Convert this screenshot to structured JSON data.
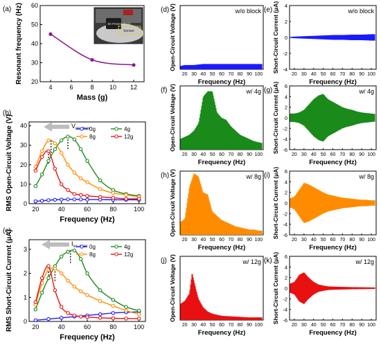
{
  "chart_data": [
    {
      "id": "a",
      "panel_label": "(a)",
      "type": "line",
      "xlabel": "Mass (g)",
      "ylabel": "Resonant frequency (Hz)",
      "xlim": [
        3,
        13
      ],
      "ylim": [
        20,
        60
      ],
      "xticks": [
        "4",
        "6",
        "8",
        "10",
        "12"
      ],
      "yticks": [
        "20",
        "30",
        "40",
        "50",
        "60"
      ],
      "series": [
        {
          "x": [
            4,
            8,
            12
          ],
          "values": [
            45,
            31.5,
            28.8
          ],
          "color": "#8B1A8F"
        }
      ],
      "inset_texts": [
        "3D Printed Block",
        "Sensor"
      ]
    },
    {
      "id": "b",
      "panel_label": "(b)",
      "type": "line",
      "xlabel": "Frequency (Hz)",
      "ylabel": "RMS Open-Circuit Voltage (V)",
      "xlim": [
        15,
        105
      ],
      "ylim": [
        0,
        42
      ],
      "xticks": [
        "20",
        "40",
        "60",
        "80",
        "100"
      ],
      "yticks": [
        "0",
        "10",
        "20",
        "30",
        "40"
      ],
      "annotation": "V",
      "annotation_sub": "oc, max",
      "series": [
        {
          "name": "0g",
          "color": "#1a1aff",
          "x": [
            20,
            25,
            30,
            35,
            40,
            45,
            50,
            55,
            60,
            70,
            80,
            90,
            100
          ],
          "values": [
            1.2,
            1.5,
            1.8,
            2.0,
            2.1,
            2.2,
            2.2,
            2.2,
            2.1,
            2.1,
            2.0,
            2.0,
            2.0
          ]
        },
        {
          "name": "4g",
          "color": "#1a8a1a",
          "x": [
            20,
            25,
            30,
            35,
            40,
            45,
            50,
            55,
            60,
            70,
            80,
            90,
            100
          ],
          "values": [
            9,
            15,
            22,
            28,
            32.5,
            34.5,
            33,
            28,
            22,
            12,
            7,
            5,
            4
          ]
        },
        {
          "name": "8g",
          "color": "#ff8c00",
          "x": [
            20,
            25,
            30,
            35,
            40,
            45,
            50,
            55,
            60,
            70,
            80,
            90,
            100
          ],
          "values": [
            19,
            27,
            32.5,
            31,
            26,
            20,
            16,
            13,
            11,
            7.5,
            5.5,
            4.5,
            3.5
          ]
        },
        {
          "name": "12g",
          "color": "#e81010",
          "x": [
            20,
            25,
            30,
            35,
            40,
            45,
            50,
            55,
            60,
            70,
            80,
            90,
            100
          ],
          "values": [
            17,
            24,
            27,
            18,
            10,
            7,
            5,
            4.5,
            4,
            3.5,
            3,
            2.5,
            2.5
          ]
        }
      ]
    },
    {
      "id": "c",
      "panel_label": "(c)",
      "type": "line",
      "xlabel": "Frequency (Hz)",
      "ylabel": "RMS Short-Circuit Current (μA)",
      "xlim": [
        15,
        105
      ],
      "ylim": [
        0,
        3.4
      ],
      "xticks": [
        "20",
        "40",
        "60",
        "80",
        "100"
      ],
      "yticks": [
        "0",
        "1",
        "2",
        "3"
      ],
      "annotation": "I",
      "annotation_sub": "sc, max",
      "series": [
        {
          "name": "0g",
          "color": "#1a1aff",
          "x": [
            20,
            30,
            40,
            50,
            60,
            70,
            80,
            90,
            100
          ],
          "values": [
            0.05,
            0.1,
            0.15,
            0.2,
            0.25,
            0.3,
            0.35,
            0.38,
            0.4
          ]
        },
        {
          "name": "4g",
          "color": "#1a8a1a",
          "x": [
            20,
            25,
            30,
            35,
            40,
            45,
            50,
            55,
            60,
            70,
            80,
            90,
            100
          ],
          "values": [
            0.5,
            1.2,
            1.8,
            2.3,
            2.7,
            2.9,
            2.95,
            2.6,
            2.0,
            1.3,
            0.9,
            0.6,
            0.45
          ]
        },
        {
          "name": "8g",
          "color": "#ff8c00",
          "x": [
            20,
            25,
            30,
            35,
            40,
            45,
            50,
            55,
            60,
            70,
            80,
            90,
            100
          ],
          "values": [
            0.7,
            1.6,
            2.15,
            2.2,
            2.0,
            1.7,
            1.45,
            1.25,
            1.1,
            0.85,
            0.65,
            0.45,
            0.3
          ]
        },
        {
          "name": "12g",
          "color": "#e81010",
          "x": [
            20,
            25,
            30,
            35,
            40,
            45,
            50,
            55,
            60,
            70,
            80,
            90,
            100
          ],
          "values": [
            0.8,
            1.8,
            2.3,
            1.3,
            0.6,
            0.35,
            0.25,
            0.2,
            0.18,
            0.15,
            0.13,
            0.12,
            0.12
          ]
        }
      ]
    },
    {
      "id": "d",
      "panel_label": "(d)",
      "type": "area",
      "condition": "w/o block",
      "ylabel": "Open-Circuit Voltage (V)",
      "xlabel": "Frequency (Hz)",
      "xlim": [
        15,
        105
      ],
      "ylim": [
        0,
        60
      ],
      "xticks": [
        "20",
        "30",
        "40",
        "50",
        "60",
        "70",
        "80",
        "90",
        "100"
      ],
      "yticks": [],
      "color": "#1a1aff",
      "envelope": {
        "x": [
          15,
          20,
          30,
          40,
          50,
          60,
          70,
          80,
          90,
          100,
          105
        ],
        "values": [
          3,
          4,
          4,
          5,
          5,
          5,
          5,
          5,
          5,
          5,
          5
        ]
      }
    },
    {
      "id": "e",
      "panel_label": "(e)",
      "type": "area",
      "condition": "w/o block",
      "ylabel": "Short-Circuit Current (μA)",
      "xlabel": "Frequency (Hz)",
      "xlim": [
        15,
        105
      ],
      "ylim": [
        -4,
        4
      ],
      "xticks": [
        "20",
        "30",
        "40",
        "50",
        "60",
        "70",
        "80",
        "90",
        "100"
      ],
      "yticks": [
        "4",
        "2",
        "0",
        "-2",
        "-4"
      ],
      "color": "#1a1aff",
      "envelope": {
        "x": [
          15,
          20,
          30,
          40,
          50,
          60,
          70,
          80,
          90,
          100,
          105
        ],
        "values": [
          0.05,
          0.1,
          0.15,
          0.2,
          0.25,
          0.3,
          0.3,
          0.35,
          0.35,
          0.4,
          0.4
        ]
      }
    },
    {
      "id": "f",
      "panel_label": "(f)",
      "type": "area",
      "condition": "w/ 4g",
      "ylabel": "Open-Circuit Voltage (V)",
      "xlabel": "Frequency (Hz)",
      "xlim": [
        15,
        105
      ],
      "ylim": [
        0,
        60
      ],
      "xticks": [
        "20",
        "30",
        "40",
        "50",
        "60",
        "70",
        "80",
        "90",
        "100"
      ],
      "yticks": [],
      "color": "#1a8a1a",
      "envelope": {
        "x": [
          15,
          20,
          25,
          30,
          35,
          40,
          45,
          50,
          55,
          60,
          65,
          70,
          75,
          80,
          85,
          90,
          95,
          100,
          105
        ],
        "values": [
          10,
          12,
          14,
          18,
          25,
          50,
          55,
          55,
          35,
          30,
          28,
          22,
          18,
          14,
          12,
          10,
          8,
          7,
          6
        ]
      }
    },
    {
      "id": "g",
      "panel_label": "(g)",
      "type": "area",
      "condition": "w/ 4g",
      "ylabel": "Short-Circuit Current (μA)",
      "xlabel": "Frequency (Hz)",
      "xlim": [
        15,
        105
      ],
      "ylim": [
        -6,
        6
      ],
      "xticks": [
        "20",
        "30",
        "40",
        "50",
        "60",
        "70",
        "80",
        "90",
        "100"
      ],
      "yticks": [
        "6",
        "4",
        "2",
        "0",
        "-2",
        "-4",
        "-6"
      ],
      "color": "#1a8a1a",
      "envelope": {
        "x": [
          15,
          20,
          25,
          30,
          35,
          40,
          45,
          50,
          55,
          60,
          65,
          70,
          75,
          80,
          85,
          90,
          95,
          100,
          105
        ],
        "values": [
          0.8,
          0.8,
          1.0,
          1.5,
          2.5,
          3.5,
          4.2,
          4.5,
          3.5,
          3.0,
          2.5,
          2.0,
          1.7,
          1.5,
          1.2,
          1.0,
          0.9,
          0.8,
          0.7
        ]
      }
    },
    {
      "id": "h",
      "panel_label": "(h)",
      "type": "area",
      "condition": "w/ 8g",
      "ylabel": "Open-Circuit Voltage (V)",
      "xlabel": "Frequency (Hz)",
      "xlim": [
        15,
        105
      ],
      "ylim": [
        0,
        60
      ],
      "xticks": [
        "20",
        "30",
        "40",
        "50",
        "60",
        "70",
        "80",
        "90",
        "100"
      ],
      "yticks": [],
      "color": "#ff8c00",
      "envelope": {
        "x": [
          15,
          20,
          25,
          30,
          35,
          40,
          45,
          50,
          55,
          60,
          65,
          70,
          75,
          80,
          85,
          90,
          95,
          100,
          105
        ],
        "values": [
          12,
          15,
          45,
          58,
          55,
          40,
          38,
          22,
          18,
          14,
          12,
          10,
          8,
          7,
          6,
          5,
          5,
          4,
          4
        ]
      }
    },
    {
      "id": "i",
      "panel_label": "(i)",
      "type": "area",
      "condition": "w/ 8g",
      "ylabel": "Short-Circuit Current (μA)",
      "xlabel": "Frequency (Hz)",
      "xlim": [
        15,
        105
      ],
      "ylim": [
        -6,
        6
      ],
      "xticks": [
        "20",
        "30",
        "40",
        "50",
        "60",
        "70",
        "80",
        "90",
        "100"
      ],
      "yticks": [
        "6",
        "4",
        "2",
        "0",
        "-2",
        "-4",
        "-6"
      ],
      "color": "#ff8c00",
      "envelope": {
        "x": [
          15,
          20,
          25,
          30,
          35,
          40,
          45,
          50,
          55,
          60,
          65,
          70,
          75,
          80,
          85,
          90,
          95,
          100,
          105
        ],
        "values": [
          0.8,
          1.2,
          2.5,
          3.8,
          3.5,
          3.0,
          2.5,
          2.0,
          1.6,
          1.4,
          1.2,
          1.0,
          0.9,
          0.8,
          0.7,
          0.6,
          0.6,
          0.5,
          0.5
        ]
      }
    },
    {
      "id": "j",
      "panel_label": "(j)",
      "type": "area",
      "condition": "w/ 12g",
      "ylabel": "Open-Circuit Voltage (V)",
      "xlabel": "Frequency (Hz)",
      "xlim": [
        15,
        105
      ],
      "ylim": [
        0,
        60
      ],
      "xticks": [
        "20",
        "30",
        "40",
        "50",
        "60",
        "70",
        "80",
        "90",
        "100"
      ],
      "yticks": [],
      "color": "#e81010",
      "envelope": {
        "x": [
          15,
          20,
          25,
          28,
          32,
          35,
          40,
          45,
          50,
          55,
          60,
          70,
          80,
          90,
          100,
          105
        ],
        "values": [
          15,
          18,
          25,
          45,
          30,
          20,
          12,
          8,
          6,
          5,
          4,
          3.5,
          3,
          2.5,
          2.5,
          2.5
        ]
      }
    },
    {
      "id": "k",
      "panel_label": "(k)",
      "type": "area",
      "condition": "w/ 12g",
      "ylabel": "Short-Circuit Current (μA)",
      "xlabel": "Frequency (Hz)",
      "xlim": [
        15,
        105
      ],
      "ylim": [
        -6,
        6
      ],
      "xticks": [
        "20",
        "30",
        "40",
        "50",
        "60",
        "70",
        "80",
        "90",
        "100"
      ],
      "yticks": [
        "6",
        "4",
        "2",
        "0",
        "-2",
        "-4",
        "-6"
      ],
      "color": "#e81010",
      "envelope": {
        "x": [
          15,
          20,
          25,
          30,
          35,
          40,
          45,
          50,
          55,
          60,
          70,
          80,
          90,
          100,
          105
        ],
        "values": [
          0.8,
          1.2,
          2.5,
          3.0,
          2.0,
          1.2,
          0.7,
          0.5,
          0.35,
          0.3,
          0.25,
          0.2,
          0.18,
          0.15,
          0.15
        ]
      }
    }
  ]
}
